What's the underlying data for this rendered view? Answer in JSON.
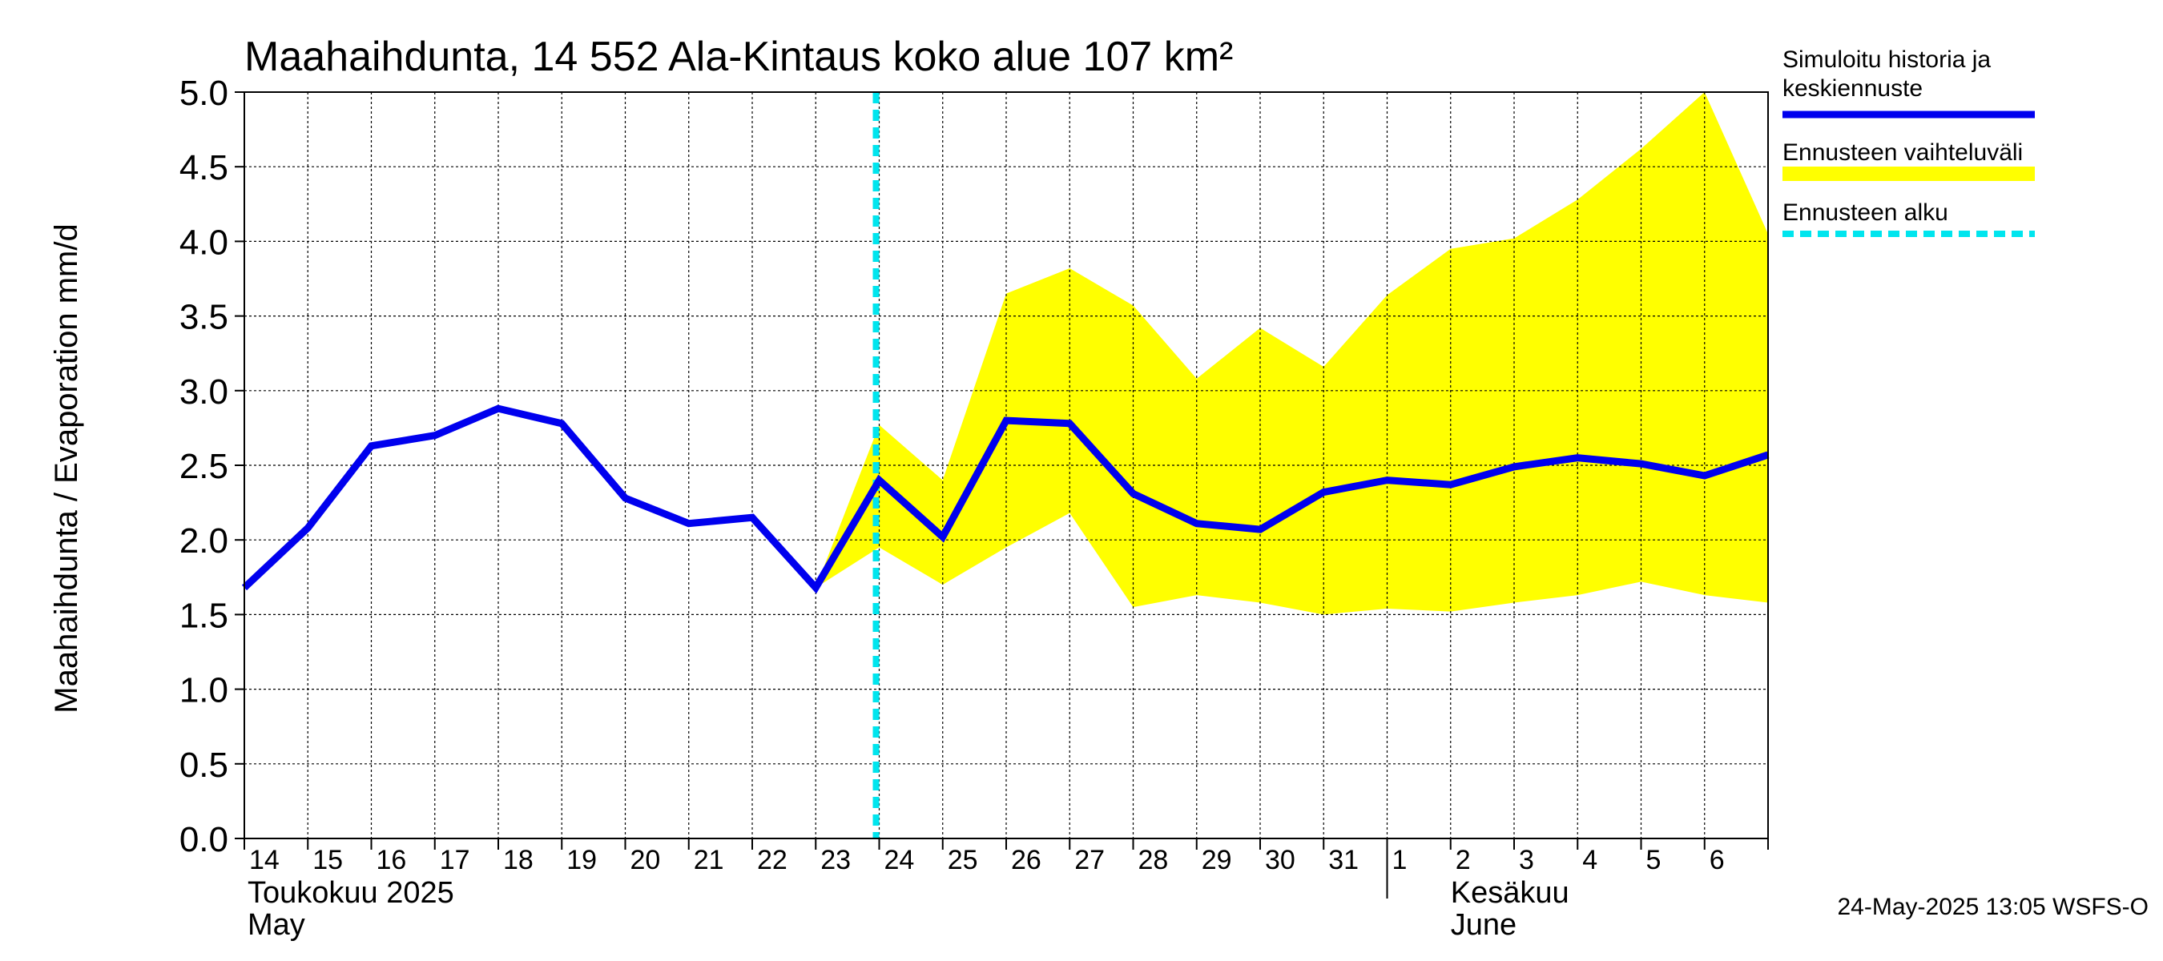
{
  "chart_data": {
    "type": "line",
    "title": "Maahaihdunta, 14 552 Ala-Kintaus koko alue 107 km²",
    "ylabel": "Maahaihdunta / Evaporation   mm/d",
    "ylim": [
      0.0,
      5.0
    ],
    "yticks": [
      "0.0",
      "0.5",
      "1.0",
      "1.5",
      "2.0",
      "2.5",
      "3.0",
      "3.5",
      "4.0",
      "4.5",
      "5.0"
    ],
    "x_start": "2025-05-14",
    "x_end": "2025-06-07",
    "x_labels": [
      "14",
      "15",
      "16",
      "17",
      "18",
      "19",
      "20",
      "21",
      "22",
      "23",
      "24",
      "25",
      "26",
      "27",
      "28",
      "29",
      "30",
      "31",
      "1",
      "2",
      "3",
      "4",
      "5",
      "6"
    ],
    "month_labels": [
      {
        "fi": "Toukokuu  2025",
        "en": "May"
      },
      {
        "fi": "Kesäkuu",
        "en": "June"
      }
    ],
    "forecast_start": "2025-05-24",
    "series": [
      {
        "name": "Simuloitu historia ja keskiennuste",
        "color": "#0000ee",
        "x": [
          "2025-05-14",
          "2025-05-15",
          "2025-05-16",
          "2025-05-17",
          "2025-05-18",
          "2025-05-19",
          "2025-05-20",
          "2025-05-21",
          "2025-05-22",
          "2025-05-23",
          "2025-05-24",
          "2025-05-25",
          "2025-05-26",
          "2025-05-27",
          "2025-05-28",
          "2025-05-29",
          "2025-05-30",
          "2025-05-31",
          "2025-06-01",
          "2025-06-02",
          "2025-06-03",
          "2025-06-04",
          "2025-06-05",
          "2025-06-06",
          "2025-06-07"
        ],
        "values": [
          1.68,
          2.08,
          2.63,
          2.7,
          2.88,
          2.78,
          2.28,
          2.11,
          2.15,
          1.68,
          2.4,
          2.02,
          2.8,
          2.78,
          2.31,
          2.11,
          2.07,
          2.32,
          2.4,
          2.37,
          2.49,
          2.55,
          2.51,
          2.43,
          2.57
        ]
      },
      {
        "name": "Ennusteen vaihteluväli",
        "color": "#ffff00",
        "x": [
          "2025-05-23",
          "2025-05-24",
          "2025-05-25",
          "2025-05-26",
          "2025-05-27",
          "2025-05-28",
          "2025-05-29",
          "2025-05-30",
          "2025-05-31",
          "2025-06-01",
          "2025-06-02",
          "2025-06-03",
          "2025-06-04",
          "2025-06-05",
          "2025-06-06",
          "2025-06-07"
        ],
        "upper": [
          1.68,
          2.77,
          2.4,
          3.65,
          3.82,
          3.57,
          3.08,
          3.42,
          3.16,
          3.64,
          3.95,
          4.02,
          4.28,
          4.62,
          5.0,
          4.05
        ],
        "lower": [
          1.68,
          1.95,
          1.7,
          1.95,
          2.18,
          1.55,
          1.63,
          1.58,
          1.5,
          1.54,
          1.52,
          1.58,
          1.63,
          1.72,
          1.63,
          1.58
        ]
      }
    ],
    "legend": [
      {
        "label": "Simuloitu historia ja keskiennuste",
        "color": "#0000ee",
        "style": "solid"
      },
      {
        "label": "Ennusteen vaihteluväli",
        "color": "#ffff00",
        "style": "band"
      },
      {
        "label": "Ennusteen alku",
        "color": "#00e5ee",
        "style": "dashed"
      }
    ],
    "legend_position": "right",
    "grid": true,
    "timestamp": "24-May-2025 13:05 WSFS-O"
  }
}
